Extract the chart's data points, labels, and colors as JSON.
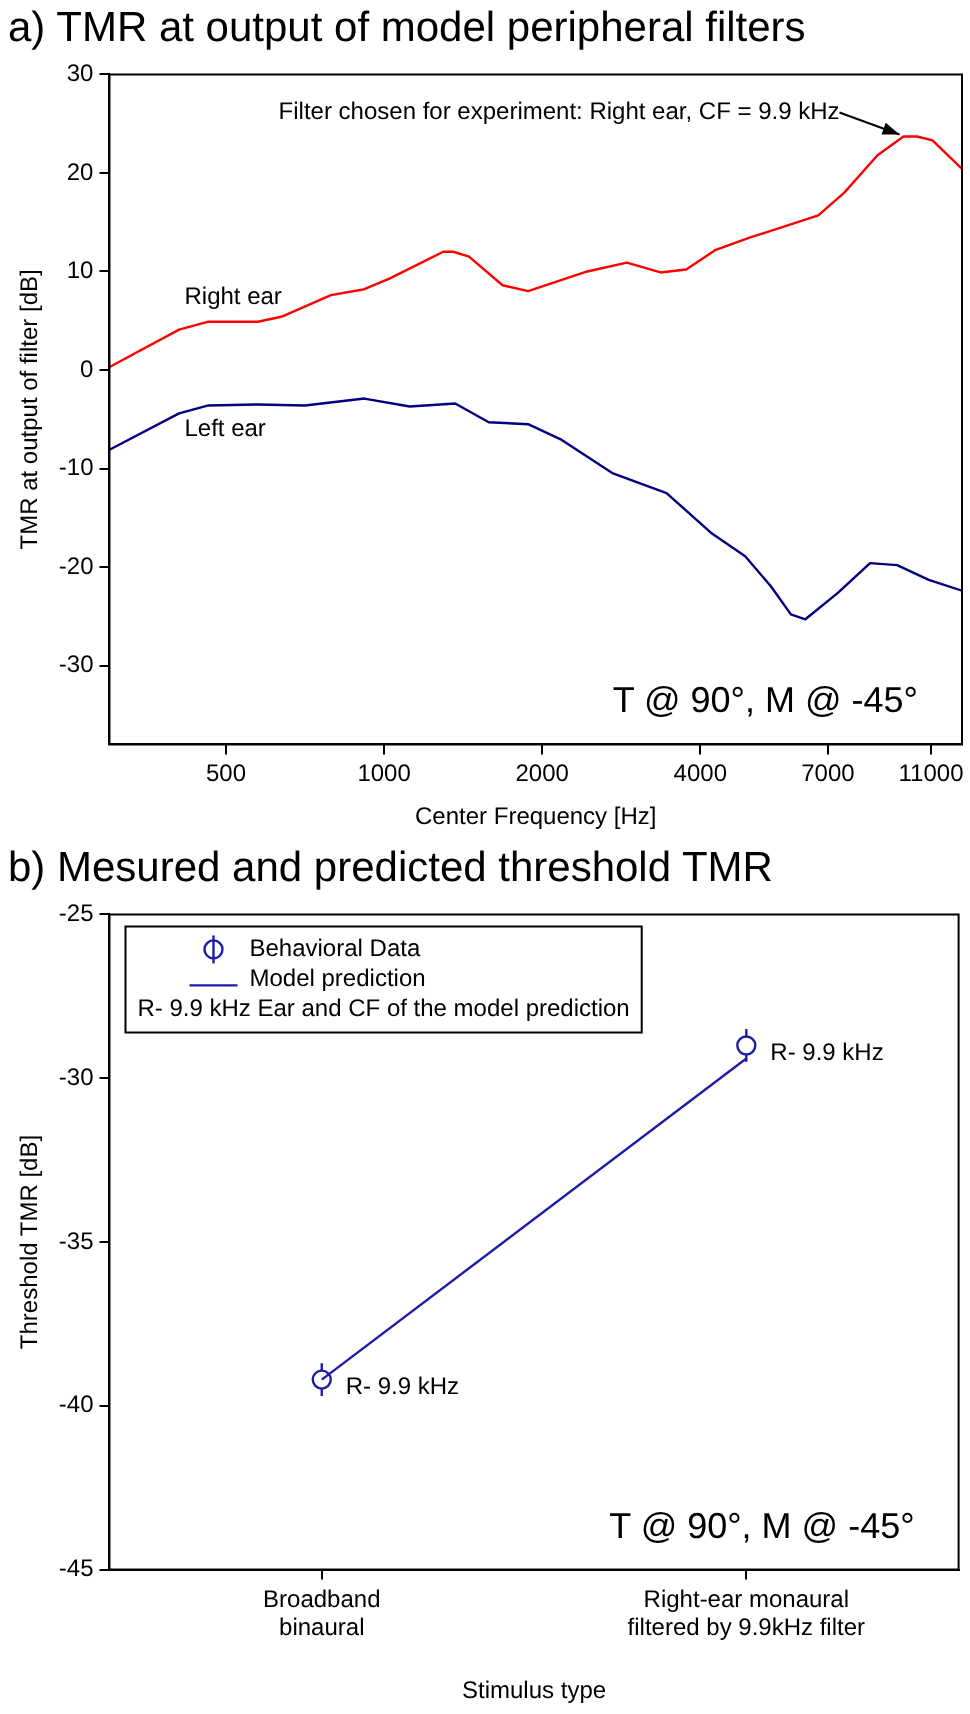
{
  "chart_data": [
    {
      "type": "line",
      "title": "a) TMR at output of model peripheral filters",
      "xlabel": "Center Frequency [Hz]",
      "ylabel": "TMR at output of filter [dB]",
      "log": "x",
      "grid": false,
      "legend": false,
      "marker": "none",
      "xlim": [
        300,
        12600
      ],
      "xticks": [
        500,
        1000,
        2000,
        4000,
        7000,
        11000
      ],
      "ylim": [
        -38,
        30
      ],
      "yticks": [
        -30,
        -20,
        -10,
        0,
        10,
        20,
        30
      ],
      "series": [
        {
          "name": "Right ear",
          "color": "#ff0000",
          "x": [
            300,
            407,
            463,
            575,
            637,
            792,
            917,
            1026,
            1296,
            1354,
            1451,
            1681,
            1880,
            2436,
            2899,
            3360,
            3760,
            4280,
            4950,
            6710,
            7520,
            8700,
            9750,
            10350,
            11070,
            12600
          ],
          "values": [
            0.3,
            4.1,
            4.9,
            4.9,
            5.4,
            7.6,
            8.2,
            9.3,
            12.0,
            12.0,
            11.5,
            8.6,
            8.0,
            10.0,
            10.9,
            9.9,
            10.2,
            12.2,
            13.4,
            15.7,
            18.0,
            21.8,
            23.7,
            23.7,
            23.3,
            20.4
          ]
        },
        {
          "name": "Left ear",
          "color": "#000080",
          "x": [
            300,
            407,
            463,
            575,
            707,
            917,
            1119,
            1366,
            1582,
            1880,
            2179,
            2728,
            3450,
            4210,
            4870,
            5460,
            5950,
            6340,
            7320,
            8420,
            9480,
            10890,
            12600
          ],
          "values": [
            -8.1,
            -4.4,
            -3.6,
            -3.5,
            -3.6,
            -2.9,
            -3.7,
            -3.4,
            -5.3,
            -5.5,
            -7.1,
            -10.5,
            -12.5,
            -16.6,
            -18.9,
            -22.0,
            -24.8,
            -25.3,
            -22.6,
            -19.6,
            -19.8,
            -21.3,
            -22.4
          ]
        }
      ],
      "annotations": [
        {
          "text": "Filter chosen for experiment: Right ear, CF = 9.9 kHz",
          "x": 9750,
          "y": 23.7
        },
        "T @ 90°, M @ -45°"
      ]
    },
    {
      "type": "line",
      "title": "b) Mesured and predicted threshold TMR",
      "xlabel": "Stimulus type",
      "ylabel": "Threshold TMR [dB]",
      "grid": false,
      "legend": "top left",
      "categories": [
        "Broadband\nbinaural",
        "Right-ear monaural\nfiltered by 9.9kHz filter"
      ],
      "ylim": [
        -45,
        -25
      ],
      "yticks": [
        -45,
        -40,
        -35,
        -30,
        -25
      ],
      "series": [
        {
          "name": "Behavioral Data",
          "type": "scatter",
          "marker": "circle",
          "color": "#1c1ca8",
          "values": [
            -39.2,
            -29.0
          ],
          "errors": [
            0.5,
            0.5
          ],
          "value_labels": [
            "R- 9.9 kHz",
            "R- 9.9 kHz"
          ]
        },
        {
          "name": "Model prediction",
          "type": "line",
          "marker": "none",
          "color": "#1c1ca8",
          "values": [
            -39.2,
            -29.4
          ]
        }
      ],
      "annotations": [
        "R- 9.9 kHz Ear and CF of the model prediction",
        "T @ 90°, M @ -45°"
      ]
    }
  ]
}
